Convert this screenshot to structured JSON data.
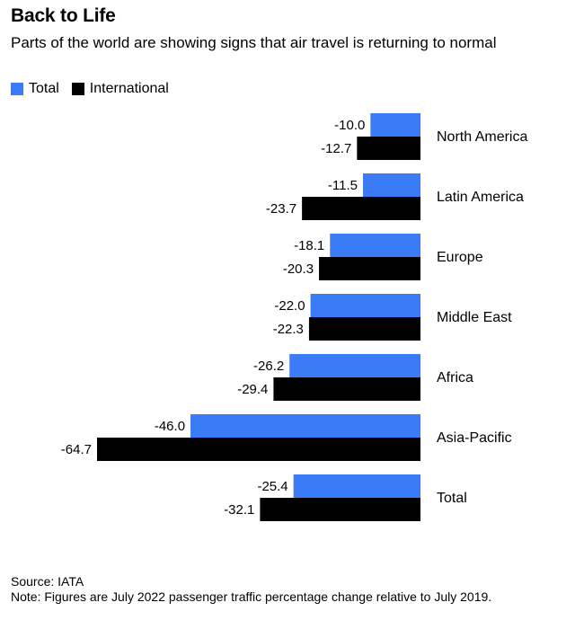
{
  "header": {
    "title": "Back to Life",
    "subtitle": "Parts of the world are showing signs that air travel is returning to normal"
  },
  "colors": {
    "total": "#3a7cf5",
    "international": "#000000"
  },
  "chart_data": {
    "type": "bar",
    "orientation": "horizontal",
    "categories": [
      "North America",
      "Latin America",
      "Europe",
      "Middle East",
      "Africa",
      "Asia-Pacific",
      "Total"
    ],
    "series": [
      {
        "name": "Total",
        "values": [
          -10.0,
          -11.5,
          -18.1,
          -22.0,
          -26.2,
          -46.0,
          -25.4
        ],
        "labels": [
          "-10.0",
          "-11.5",
          "-18.1",
          "-22.0",
          "-26.2",
          "-46.0",
          "-25.4"
        ]
      },
      {
        "name": "International",
        "values": [
          -12.7,
          -23.7,
          -20.3,
          -22.3,
          -29.4,
          -64.7,
          -32.1
        ],
        "labels": [
          "-12.7",
          "-23.7",
          "-20.3",
          "-22.3",
          "-29.4",
          "-64.7",
          "-32.1"
        ]
      }
    ],
    "xlim": [
      -64.7,
      0
    ],
    "grid": false,
    "legend_position": "top-left"
  },
  "footer": {
    "source": "Source: IATA",
    "note": "Note: Figures are July 2022 passenger traffic percentage change relative to July 2019."
  }
}
